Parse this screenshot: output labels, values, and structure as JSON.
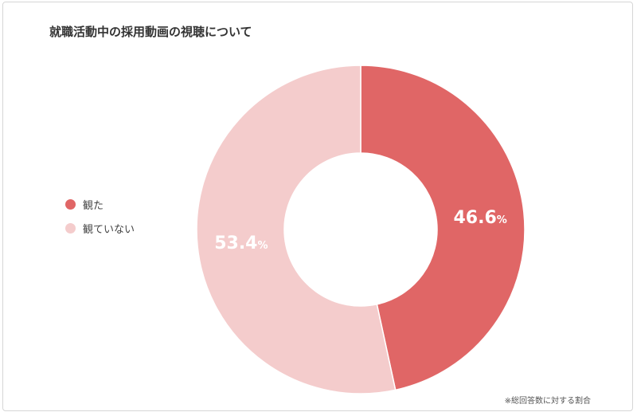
{
  "title": "就職活動中の採用動画の視聴について",
  "footnote": "※総回答数に対する割合",
  "colors": {
    "watched": "#e06666",
    "not_watched": "#f4cccc"
  },
  "legend": [
    {
      "label": "観た",
      "color": "#e06666"
    },
    {
      "label": "観ていない",
      "color": "#f4cccc"
    }
  ],
  "chart_data": {
    "type": "pie",
    "donut": true,
    "title": "就職活動中の採用動画の視聴について",
    "categories": [
      "観た",
      "観ていない"
    ],
    "values": [
      46.6,
      53.4
    ],
    "unit": "%",
    "legend_position": "left"
  }
}
